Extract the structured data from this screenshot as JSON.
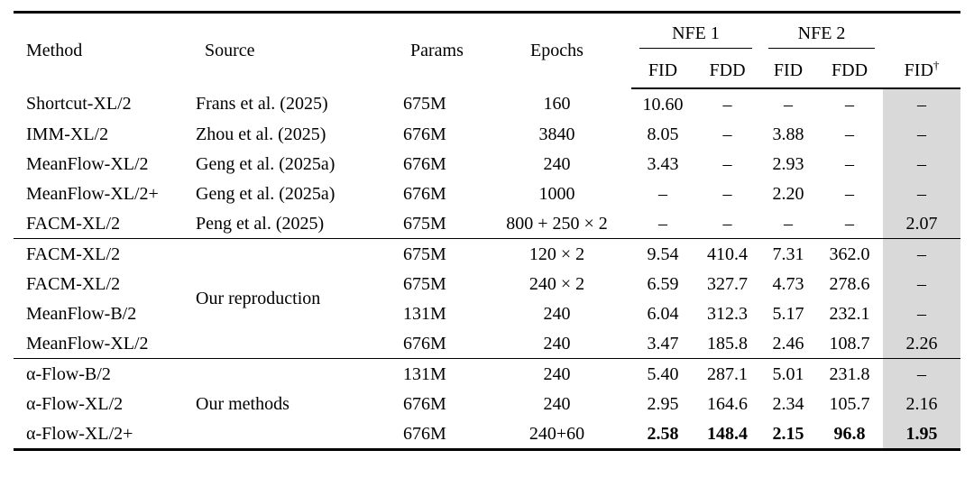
{
  "colors": {
    "highlight_column": "#d9d9d9"
  },
  "table": {
    "headers": {
      "method": "Method",
      "source": "Source",
      "params": "Params",
      "epochs": "Epochs",
      "nfe1": "NFE 1",
      "nfe2": "NFE 2",
      "sub": [
        "FID",
        "FDD",
        "FID",
        "FDD"
      ],
      "fid_dagger": {
        "base": "FID",
        "sup": "†"
      }
    },
    "groups": [
      {
        "rows": [
          {
            "method": "Shortcut-XL/2",
            "source": "Frans et al. (2025)",
            "params": "675M",
            "epochs": "160",
            "vals": [
              "10.60",
              "–",
              "–",
              "–",
              "–"
            ]
          },
          {
            "method": "IMM-XL/2",
            "source": "Zhou et al. (2025)",
            "params": "676M",
            "epochs": "3840",
            "vals": [
              "8.05",
              "–",
              "3.88",
              "–",
              "–"
            ]
          },
          {
            "method": "MeanFlow-XL/2",
            "source": "Geng et al. (2025a)",
            "params": "676M",
            "epochs": "240",
            "vals": [
              "3.43",
              "–",
              "2.93",
              "–",
              "–"
            ]
          },
          {
            "method": "MeanFlow-XL/2+",
            "source": "Geng et al. (2025a)",
            "params": "676M",
            "epochs": "1000",
            "vals": [
              "–",
              "–",
              "2.20",
              "–",
              "–"
            ]
          },
          {
            "method": "FACM-XL/2",
            "source": "Peng et al. (2025)",
            "params": "675M",
            "epochs": "800 + 250 × 2",
            "vals": [
              "–",
              "–",
              "–",
              "–",
              "2.07"
            ]
          }
        ]
      },
      {
        "source": "Our reproduction",
        "rows": [
          {
            "method": "FACM-XL/2",
            "params": "675M",
            "epochs": "120 × 2",
            "vals": [
              "9.54",
              "410.4",
              "7.31",
              "362.0",
              "–"
            ]
          },
          {
            "method": "FACM-XL/2",
            "params": "675M",
            "epochs": "240 × 2",
            "vals": [
              "6.59",
              "327.7",
              "4.73",
              "278.6",
              "–"
            ]
          },
          {
            "method": "MeanFlow-B/2",
            "params": "131M",
            "epochs": "240",
            "vals": [
              "6.04",
              "312.3",
              "5.17",
              "232.1",
              "–"
            ]
          },
          {
            "method": "MeanFlow-XL/2",
            "params": "676M",
            "epochs": "240",
            "vals": [
              "3.47",
              "185.8",
              "2.46",
              "108.7",
              "2.26"
            ]
          }
        ]
      },
      {
        "source": "Our methods",
        "rows": [
          {
            "method": "α-Flow-B/2",
            "params": "131M",
            "epochs": "240",
            "vals": [
              "5.40",
              "287.1",
              "5.01",
              "231.8",
              "–"
            ]
          },
          {
            "method": "α-Flow-XL/2",
            "params": "676M",
            "epochs": "240",
            "vals": [
              "2.95",
              "164.6",
              "2.34",
              "105.7",
              "2.16"
            ]
          },
          {
            "method": "α-Flow-XL/2+",
            "params": "676M",
            "epochs": "240+60",
            "vals": [
              "2.58",
              "148.4",
              "2.15",
              "96.8",
              "1.95"
            ],
            "bold_vals": true
          }
        ]
      }
    ]
  }
}
